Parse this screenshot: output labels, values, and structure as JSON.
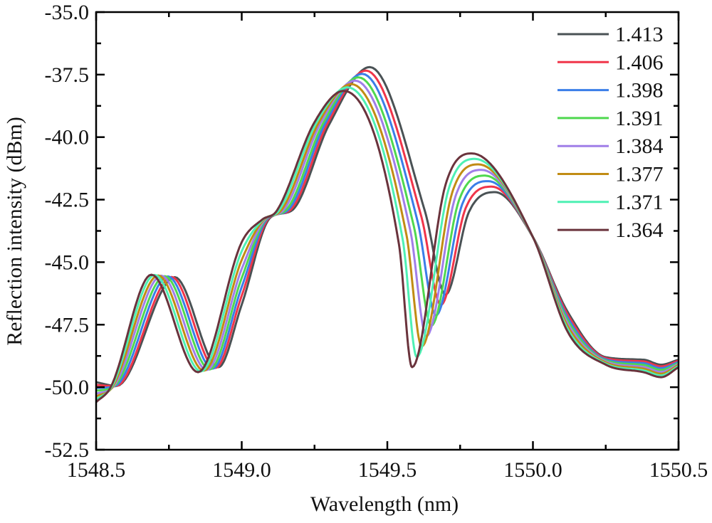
{
  "chart_data": {
    "type": "line",
    "xlabel": "Wavelength (nm)",
    "ylabel": "Reflection intensity (dBm)",
    "xlim": [
      1548.5,
      1550.5
    ],
    "ylim": [
      -52.5,
      -35.0
    ],
    "xticks": [
      "1548.5",
      "1549.0",
      "1549.5",
      "1550.0",
      "1550.5"
    ],
    "xtick_values": [
      1548.5,
      1549.0,
      1549.5,
      1550.0,
      1550.5
    ],
    "yticks": [
      "-35.0",
      "-37.5",
      "-40.0",
      "-42.5",
      "-45.0",
      "-47.5",
      "-50.0",
      "-52.5"
    ],
    "ytick_values": [
      -35.0,
      -37.5,
      -40.0,
      -42.5,
      -45.0,
      -47.5,
      -50.0,
      -52.5
    ],
    "grid": false,
    "legend_position": "top-right",
    "series": [
      {
        "name": "1.413",
        "color": "#4a5255",
        "points": [
          [
            1548.5,
            -49.8
          ],
          [
            1548.57,
            -49.95
          ],
          [
            1548.77,
            -45.6
          ],
          [
            1548.92,
            -49.2
          ],
          [
            1549.0,
            -46.7
          ],
          [
            1549.1,
            -43.2
          ],
          [
            1549.17,
            -42.95
          ],
          [
            1549.3,
            -39.5
          ],
          [
            1549.44,
            -37.2
          ],
          [
            1549.63,
            -43.0
          ],
          [
            1549.7,
            -46.3
          ],
          [
            1549.78,
            -43.0
          ],
          [
            1549.87,
            -42.2
          ],
          [
            1550.0,
            -44.0
          ],
          [
            1550.12,
            -47.0
          ],
          [
            1550.25,
            -48.8
          ],
          [
            1550.38,
            -48.9
          ],
          [
            1550.44,
            -49.1
          ],
          [
            1550.5,
            -48.9
          ]
        ]
      },
      {
        "name": "1.406",
        "color": "#f0354a",
        "points": [
          [
            1548.5,
            -49.91
          ],
          [
            1548.567,
            -49.96
          ],
          [
            1548.759,
            -45.59
          ],
          [
            1548.91,
            -49.23
          ],
          [
            1549.0,
            -46.34
          ],
          [
            1549.096,
            -43.21
          ],
          [
            1549.163,
            -42.95
          ],
          [
            1549.293,
            -39.49
          ],
          [
            1549.427,
            -37.34
          ],
          [
            1549.617,
            -43.19
          ],
          [
            1549.684,
            -46.71
          ],
          [
            1549.769,
            -42.84
          ],
          [
            1549.859,
            -41.98
          ],
          [
            1550.0,
            -44.0
          ],
          [
            1550.12,
            -47.11
          ],
          [
            1550.25,
            -48.84
          ],
          [
            1550.38,
            -48.97
          ],
          [
            1550.44,
            -49.17
          ],
          [
            1550.5,
            -48.94
          ]
        ]
      },
      {
        "name": "1.398",
        "color": "#3a7ee8",
        "points": [
          [
            1548.5,
            -50.03
          ],
          [
            1548.564,
            -49.96
          ],
          [
            1548.747,
            -45.57
          ],
          [
            1548.9,
            -49.26
          ],
          [
            1549.0,
            -45.99
          ],
          [
            1549.091,
            -43.23
          ],
          [
            1549.156,
            -42.95
          ],
          [
            1549.286,
            -39.47
          ],
          [
            1549.414,
            -37.47
          ],
          [
            1549.604,
            -43.37
          ],
          [
            1549.667,
            -47.13
          ],
          [
            1549.757,
            -42.69
          ],
          [
            1549.847,
            -41.76
          ],
          [
            1550.0,
            -44.0
          ],
          [
            1550.12,
            -47.23
          ],
          [
            1550.25,
            -48.89
          ],
          [
            1550.38,
            -49.04
          ],
          [
            1550.44,
            -49.24
          ],
          [
            1550.5,
            -48.99
          ]
        ]
      },
      {
        "name": "1.391",
        "color": "#4fd84f",
        "points": [
          [
            1548.5,
            -50.14
          ],
          [
            1548.561,
            -49.97
          ],
          [
            1548.736,
            -45.56
          ],
          [
            1548.89,
            -49.29
          ],
          [
            1549.0,
            -45.63
          ],
          [
            1549.087,
            -43.24
          ],
          [
            1549.149,
            -42.95
          ],
          [
            1549.279,
            -39.46
          ],
          [
            1549.401,
            -37.61
          ],
          [
            1549.591,
            -43.56
          ],
          [
            1549.651,
            -47.54
          ],
          [
            1549.746,
            -42.53
          ],
          [
            1549.836,
            -41.54
          ],
          [
            1550.0,
            -44.0
          ],
          [
            1550.12,
            -47.34
          ],
          [
            1550.25,
            -48.93
          ],
          [
            1550.38,
            -49.11
          ],
          [
            1550.44,
            -49.31
          ],
          [
            1550.5,
            -49.03
          ]
        ]
      },
      {
        "name": "1.384",
        "color": "#a07ee8",
        "points": [
          [
            1548.5,
            -50.26
          ],
          [
            1548.559,
            -49.98
          ],
          [
            1548.724,
            -45.54
          ],
          [
            1548.88,
            -49.31
          ],
          [
            1549.0,
            -45.27
          ],
          [
            1549.083,
            -43.26
          ],
          [
            1549.141,
            -42.95
          ],
          [
            1549.271,
            -39.44
          ],
          [
            1549.389,
            -37.74
          ],
          [
            1549.579,
            -43.74
          ],
          [
            1549.634,
            -47.96
          ],
          [
            1549.734,
            -42.37
          ],
          [
            1549.824,
            -41.31
          ],
          [
            1550.0,
            -44.0
          ],
          [
            1550.12,
            -47.46
          ],
          [
            1550.25,
            -48.97
          ],
          [
            1550.38,
            -49.19
          ],
          [
            1550.44,
            -49.39
          ],
          [
            1550.5,
            -49.07
          ]
        ]
      },
      {
        "name": "1.377",
        "color": "#c18c14",
        "points": [
          [
            1548.5,
            -50.37
          ],
          [
            1548.556,
            -49.99
          ],
          [
            1548.713,
            -45.53
          ],
          [
            1548.87,
            -49.34
          ],
          [
            1549.0,
            -44.91
          ],
          [
            1549.079,
            -43.27
          ],
          [
            1549.134,
            -42.95
          ],
          [
            1549.264,
            -39.43
          ],
          [
            1549.376,
            -37.88
          ],
          [
            1549.566,
            -43.93
          ],
          [
            1549.618,
            -48.37
          ],
          [
            1549.723,
            -42.21
          ],
          [
            1549.813,
            -41.09
          ],
          [
            1550.0,
            -44.0
          ],
          [
            1550.12,
            -47.57
          ],
          [
            1550.25,
            -49.01
          ],
          [
            1550.38,
            -49.26
          ],
          [
            1550.44,
            -49.46
          ],
          [
            1550.5,
            -49.11
          ]
        ]
      },
      {
        "name": "1.371",
        "color": "#4ef0b4",
        "points": [
          [
            1548.5,
            -50.49
          ],
          [
            1548.553,
            -49.99
          ],
          [
            1548.701,
            -45.51
          ],
          [
            1548.86,
            -49.37
          ],
          [
            1549.0,
            -44.56
          ],
          [
            1549.074,
            -43.29
          ],
          [
            1549.127,
            -42.95
          ],
          [
            1549.257,
            -39.41
          ],
          [
            1549.363,
            -38.01
          ],
          [
            1549.553,
            -44.11
          ],
          [
            1549.601,
            -48.79
          ],
          [
            1549.711,
            -42.06
          ],
          [
            1549.801,
            -40.87
          ],
          [
            1550.0,
            -44.0
          ],
          [
            1550.12,
            -47.69
          ],
          [
            1550.25,
            -49.06
          ],
          [
            1550.38,
            -49.33
          ],
          [
            1550.44,
            -49.53
          ],
          [
            1550.5,
            -49.16
          ]
        ]
      },
      {
        "name": "1.364",
        "color": "#6a333c",
        "points": [
          [
            1548.5,
            -50.6
          ],
          [
            1548.55,
            -50.0
          ],
          [
            1548.69,
            -45.5
          ],
          [
            1548.85,
            -49.4
          ],
          [
            1549.0,
            -44.2
          ],
          [
            1549.07,
            -43.3
          ],
          [
            1549.12,
            -42.95
          ],
          [
            1549.25,
            -39.4
          ],
          [
            1549.35,
            -38.15
          ],
          [
            1549.54,
            -44.3
          ],
          [
            1549.585,
            -49.2
          ],
          [
            1549.7,
            -41.9
          ],
          [
            1549.79,
            -40.65
          ],
          [
            1550.0,
            -44.0
          ],
          [
            1550.12,
            -47.8
          ],
          [
            1550.25,
            -49.1
          ],
          [
            1550.38,
            -49.4
          ],
          [
            1550.44,
            -49.6
          ],
          [
            1550.5,
            -49.2
          ]
        ]
      }
    ]
  }
}
